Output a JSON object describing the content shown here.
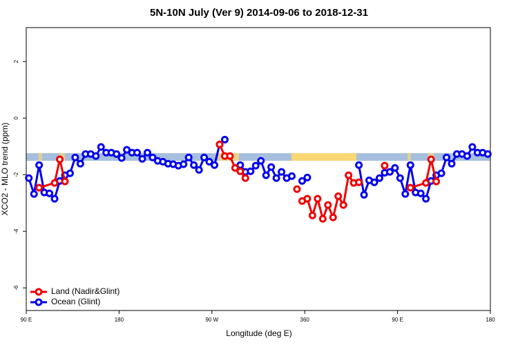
{
  "chart_data": {
    "type": "line",
    "title": "5N-10N July (Ver 9)   2014-09-06 to 2018-12-31",
    "x_label": "Longitude (deg E)",
    "y_label": "XCO2 - MLO trend (ppm)",
    "xlim": [
      90,
      540
    ],
    "xticks": [
      {
        "value": 90,
        "label": "90 E"
      },
      180,
      {
        "value": 270,
        "label": "90 W"
      },
      360,
      {
        "value": 450,
        "label": "90 E"
      },
      {
        "value": 540,
        "label": "180"
      }
    ],
    "ylim": [
      -6.8,
      3.2
    ],
    "yticks": [
      -6,
      -4,
      -2,
      0,
      2
    ],
    "legend": "bottom-left",
    "series": [
      {
        "name": "Ocean (Glint)",
        "color": "#0000ee",
        "x": [
          92.5,
          97.5,
          102.5,
          107.5,
          112.5,
          117.5,
          122.5,
          127.5,
          132.5,
          137.5,
          142.5,
          147.5,
          152.5,
          157.5,
          162.5,
          167.5,
          172.5,
          177.5,
          182.5,
          187.5,
          192.5,
          197.5,
          202.5,
          207.5,
          212.5,
          217.5,
          222.5,
          227.5,
          232.5,
          237.5,
          242.5,
          247.5,
          252.5,
          257.5,
          262.5,
          267.5,
          272.5,
          277.5,
          282.5,
          287.5,
          292.5,
          297.5,
          302.5,
          307.5,
          312.5,
          317.5,
          322.5,
          327.5,
          332.5,
          337.5,
          342.5,
          347.5,
          352.5,
          357.5,
          362.5,
          367.5,
          372.5,
          377.5,
          382.5,
          387.5,
          392.5,
          397.5,
          402.5,
          407.5,
          412.5,
          417.5,
          422.5,
          427.5,
          432.5,
          437.5,
          442.5,
          447.5,
          452.5,
          457.5,
          462.5,
          467.5,
          472.5,
          477.5,
          482.5,
          487.5,
          492.5,
          497.5,
          502.5,
          507.5,
          512.5,
          517.5,
          522.5,
          527.5,
          532.5,
          537.5
        ],
        "values": [
          -2.12,
          -2.68,
          -1.66,
          -2.63,
          -2.66,
          -2.85,
          -2.22,
          -2.02,
          -1.95,
          -1.39,
          -1.61,
          -1.27,
          -1.27,
          -1.34,
          -1.02,
          -1.22,
          -1.22,
          -1.27,
          -1.41,
          -1.12,
          -1.22,
          -1.22,
          -1.44,
          -1.22,
          -1.39,
          -1.51,
          -1.54,
          -1.61,
          -1.63,
          -1.68,
          -1.63,
          -1.39,
          -1.66,
          -1.83,
          -1.39,
          -1.54,
          -1.66,
          -0.93,
          -0.76,
          null,
          null,
          -1.66,
          -1.9,
          -1.88,
          -1.68,
          -1.51,
          -2.02,
          -1.73,
          -2.12,
          -1.9,
          -2.12,
          -2.05,
          null,
          -2.22,
          -2.1,
          null,
          null,
          null,
          null,
          null,
          null,
          null,
          null,
          null,
          -1.66,
          -2.71,
          -2.2,
          -2.27,
          -2.12,
          -1.93,
          -1.9,
          -1.76,
          -2.12,
          -2.68,
          -1.66,
          -2.63,
          -2.66,
          -2.85,
          -2.22,
          -2.02,
          -1.95,
          -1.39,
          -1.61,
          -1.27,
          -1.27,
          -1.34,
          -1.02,
          -1.22,
          -1.22,
          -1.27
        ]
      },
      {
        "name": "Land (Nadir&Glint)",
        "color": "#ee0000",
        "x": [
          102.5,
          117.5,
          122.5,
          127.5,
          null,
          277.5,
          282.5,
          287.5,
          292.5,
          297.5,
          302.5,
          null,
          352.5,
          null,
          357.5,
          362.5,
          367.5,
          372.5,
          377.5,
          382.5,
          387.5,
          392.5,
          397.5,
          402.5,
          407.5,
          412.5,
          null,
          437.5,
          null,
          462.5,
          477.5,
          482.5,
          487.5
        ],
        "values": [
          -2.46,
          -2.29,
          -1.46,
          -2.24,
          null,
          -0.93,
          -1.34,
          -1.34,
          -1.76,
          -1.88,
          -2.12,
          null,
          -2.51,
          null,
          -2.93,
          -2.85,
          -3.44,
          -2.85,
          -3.56,
          -3.07,
          -3.51,
          -2.76,
          -3.07,
          -2.02,
          -2.29,
          -2.27,
          null,
          -1.68,
          null,
          -2.46,
          -2.29,
          -1.46,
          -2.24
        ]
      }
    ]
  }
}
